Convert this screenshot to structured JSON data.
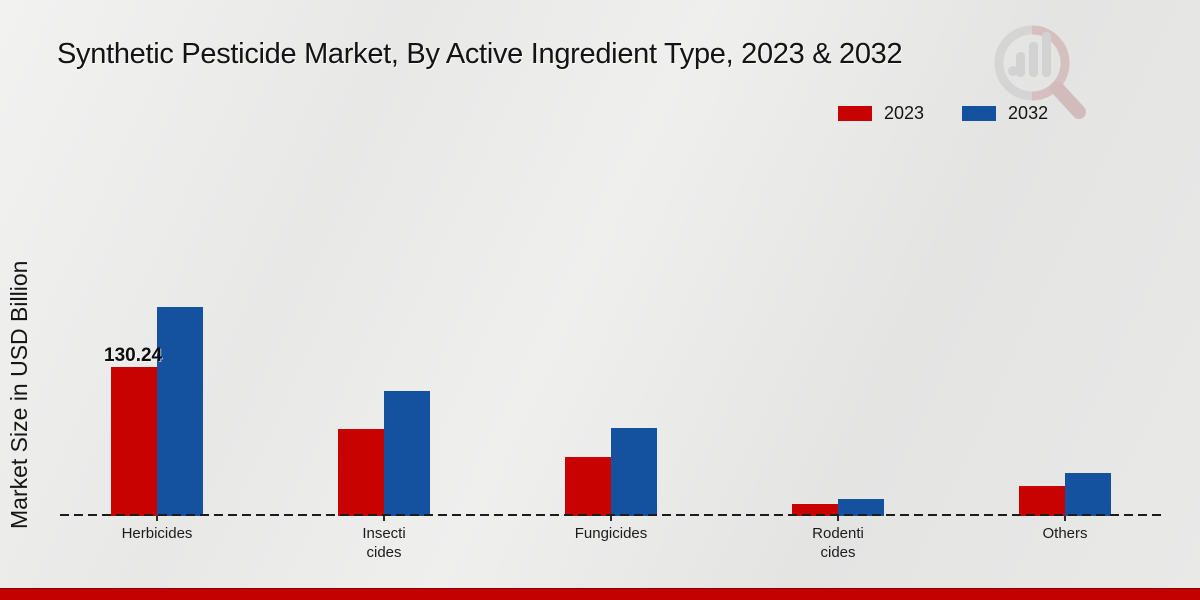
{
  "colors": {
    "bar_2023": "#c80101",
    "bar_2032": "#14529f",
    "footer_band": "#c30101",
    "baseline": "#1c1c1c"
  },
  "chart_data": {
    "type": "bar",
    "title": "Synthetic Pesticide Market, By Active Ingredient Type, 2023 & 2032",
    "ylabel": "Market Size in USD Billion",
    "xlabel": "",
    "categories": [
      "Herbicides",
      "Insecticides",
      "Fungicides",
      "Rodenticides",
      "Others"
    ],
    "category_display": [
      "Herbicides",
      "Insecti\ncides",
      "Fungicides",
      "Rodenti\ncides",
      "Others"
    ],
    "series": [
      {
        "name": "2023",
        "color": "#c80101",
        "values": [
          130.24,
          76.0,
          52.0,
          10.5,
          25.8
        ]
      },
      {
        "name": "2032",
        "color": "#14529f",
        "values": [
          182.7,
          109.7,
          76.9,
          14.9,
          38.0
        ]
      }
    ],
    "annotations": [
      {
        "series": "2023",
        "category": "Herbicides",
        "text": "130.24"
      }
    ],
    "ylim": [
      0,
      200
    ],
    "grid": false,
    "axis_style": "dashed-zero-baseline-only",
    "legend_position": "top-right"
  }
}
